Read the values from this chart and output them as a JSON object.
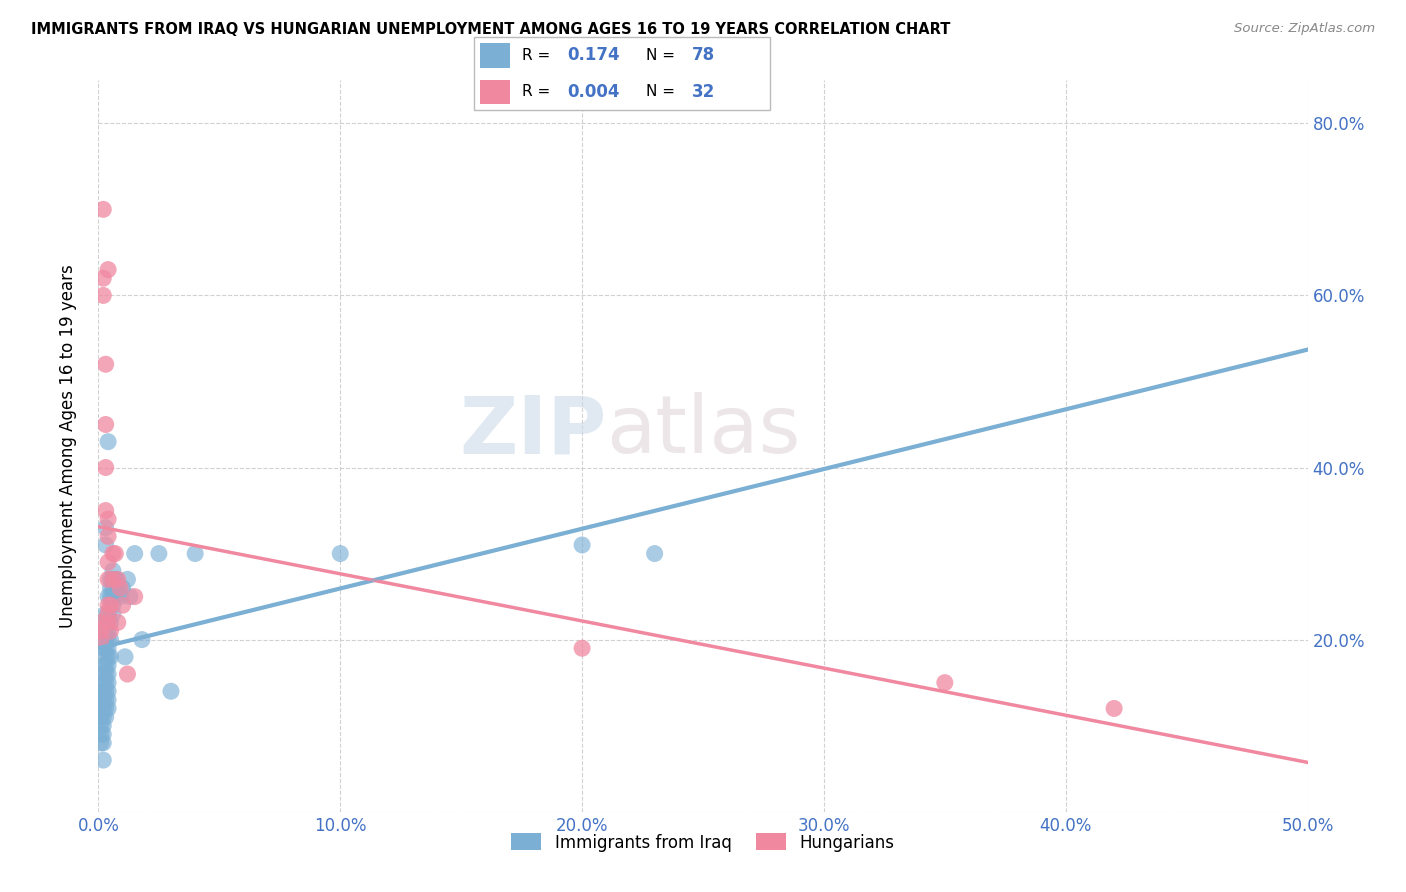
{
  "title": "IMMIGRANTS FROM IRAQ VS HUNGARIAN UNEMPLOYMENT AMONG AGES 16 TO 19 YEARS CORRELATION CHART",
  "source": "Source: ZipAtlas.com",
  "ylabel": "Unemployment Among Ages 16 to 19 years",
  "xlim": [
    0.0,
    0.5
  ],
  "ylim": [
    0.0,
    0.85
  ],
  "x_ticks": [
    0.0,
    0.1,
    0.2,
    0.3,
    0.4,
    0.5
  ],
  "x_tick_labels": [
    "0.0%",
    "10.0%",
    "20.0%",
    "30.0%",
    "40.0%",
    "50.0%"
  ],
  "y_ticks": [
    0.0,
    0.2,
    0.4,
    0.6,
    0.8
  ],
  "right_y_tick_labels": [
    "",
    "20.0%",
    "40.0%",
    "60.0%",
    "80.0%"
  ],
  "blue_color": "#7bafd4",
  "pink_color": "#f088a0",
  "blue_scatter": [
    [
      0.001,
      0.14
    ],
    [
      0.001,
      0.13
    ],
    [
      0.001,
      0.12
    ],
    [
      0.001,
      0.11
    ],
    [
      0.001,
      0.1
    ],
    [
      0.001,
      0.09
    ],
    [
      0.001,
      0.08
    ],
    [
      0.002,
      0.19
    ],
    [
      0.002,
      0.17
    ],
    [
      0.002,
      0.16
    ],
    [
      0.002,
      0.15
    ],
    [
      0.002,
      0.14
    ],
    [
      0.002,
      0.13
    ],
    [
      0.002,
      0.12
    ],
    [
      0.002,
      0.11
    ],
    [
      0.002,
      0.1
    ],
    [
      0.002,
      0.09
    ],
    [
      0.002,
      0.08
    ],
    [
      0.002,
      0.06
    ],
    [
      0.003,
      0.33
    ],
    [
      0.003,
      0.31
    ],
    [
      0.003,
      0.23
    ],
    [
      0.003,
      0.22
    ],
    [
      0.003,
      0.21
    ],
    [
      0.003,
      0.2
    ],
    [
      0.003,
      0.19
    ],
    [
      0.003,
      0.18
    ],
    [
      0.003,
      0.17
    ],
    [
      0.003,
      0.16
    ],
    [
      0.003,
      0.15
    ],
    [
      0.003,
      0.14
    ],
    [
      0.003,
      0.13
    ],
    [
      0.003,
      0.12
    ],
    [
      0.003,
      0.11
    ],
    [
      0.004,
      0.43
    ],
    [
      0.004,
      0.25
    ],
    [
      0.004,
      0.23
    ],
    [
      0.004,
      0.22
    ],
    [
      0.004,
      0.21
    ],
    [
      0.004,
      0.2
    ],
    [
      0.004,
      0.19
    ],
    [
      0.004,
      0.18
    ],
    [
      0.004,
      0.17
    ],
    [
      0.004,
      0.16
    ],
    [
      0.004,
      0.15
    ],
    [
      0.004,
      0.14
    ],
    [
      0.004,
      0.13
    ],
    [
      0.004,
      0.12
    ],
    [
      0.005,
      0.27
    ],
    [
      0.005,
      0.26
    ],
    [
      0.005,
      0.25
    ],
    [
      0.005,
      0.22
    ],
    [
      0.005,
      0.2
    ],
    [
      0.005,
      0.18
    ],
    [
      0.006,
      0.28
    ],
    [
      0.006,
      0.27
    ],
    [
      0.006,
      0.26
    ],
    [
      0.006,
      0.25
    ],
    [
      0.006,
      0.24
    ],
    [
      0.006,
      0.23
    ],
    [
      0.007,
      0.27
    ],
    [
      0.007,
      0.26
    ],
    [
      0.007,
      0.25
    ],
    [
      0.007,
      0.27
    ],
    [
      0.008,
      0.26
    ],
    [
      0.009,
      0.25
    ],
    [
      0.01,
      0.26
    ],
    [
      0.011,
      0.18
    ],
    [
      0.012,
      0.27
    ],
    [
      0.013,
      0.25
    ],
    [
      0.015,
      0.3
    ],
    [
      0.018,
      0.2
    ],
    [
      0.025,
      0.3
    ],
    [
      0.03,
      0.14
    ],
    [
      0.04,
      0.3
    ],
    [
      0.1,
      0.3
    ],
    [
      0.2,
      0.31
    ],
    [
      0.23,
      0.3
    ]
  ],
  "pink_scatter": [
    [
      0.001,
      0.22
    ],
    [
      0.001,
      0.21
    ],
    [
      0.001,
      0.2
    ],
    [
      0.002,
      0.7
    ],
    [
      0.002,
      0.62
    ],
    [
      0.002,
      0.6
    ],
    [
      0.003,
      0.52
    ],
    [
      0.003,
      0.45
    ],
    [
      0.003,
      0.4
    ],
    [
      0.003,
      0.35
    ],
    [
      0.004,
      0.63
    ],
    [
      0.004,
      0.34
    ],
    [
      0.004,
      0.32
    ],
    [
      0.004,
      0.29
    ],
    [
      0.004,
      0.27
    ],
    [
      0.004,
      0.24
    ],
    [
      0.004,
      0.23
    ],
    [
      0.004,
      0.22
    ],
    [
      0.005,
      0.21
    ],
    [
      0.005,
      0.24
    ],
    [
      0.006,
      0.3
    ],
    [
      0.006,
      0.27
    ],
    [
      0.007,
      0.3
    ],
    [
      0.008,
      0.27
    ],
    [
      0.008,
      0.22
    ],
    [
      0.009,
      0.26
    ],
    [
      0.01,
      0.24
    ],
    [
      0.012,
      0.16
    ],
    [
      0.015,
      0.25
    ],
    [
      0.2,
      0.19
    ],
    [
      0.35,
      0.15
    ],
    [
      0.42,
      0.12
    ]
  ],
  "watermark_zip": "ZIP",
  "watermark_atlas": "atlas",
  "legend_entries": [
    {
      "label": "Immigrants from Iraq",
      "color": "#7bafd4"
    },
    {
      "label": "Hungarians",
      "color": "#f088a0"
    }
  ]
}
